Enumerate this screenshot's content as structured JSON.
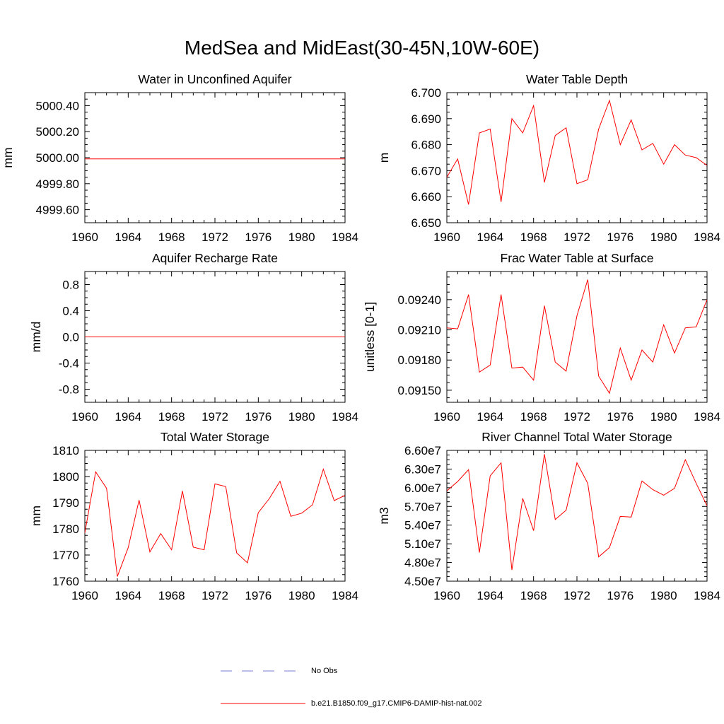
{
  "figure": {
    "title": "MedSea and MidEast(30-45N,10W-60E)"
  },
  "legend": {
    "entries": [
      {
        "label": "No Obs",
        "color": "#7b7bd6",
        "style": "dashed"
      },
      {
        "label": "b.e21.B1850.f09_g17.CMIP6-DAMIP-hist-nat.002",
        "color": "#ff0000",
        "style": "solid"
      }
    ]
  },
  "chart_data": [
    {
      "type": "line",
      "title": "Water in Unconfined Aquifer",
      "ylabel": "mm",
      "xlim": [
        1960,
        1984
      ],
      "ylim": [
        4999.5,
        5000.5
      ],
      "xticks": [
        1960,
        1964,
        1968,
        1972,
        1976,
        1980,
        1984
      ],
      "yticks": [
        4999.6,
        4999.8,
        5000.0,
        5000.2,
        5000.4
      ],
      "ytick_labels": [
        "4999.60",
        "4999.80",
        "5000.00",
        "5000.20",
        "5000.40"
      ],
      "x": [
        1960,
        1984
      ],
      "series": [
        {
          "name": "b.e21.B1850.f09_g17.CMIP6-DAMIP-hist-nat.002",
          "color": "#ff0000",
          "values": [
            4999.99,
            4999.99
          ]
        }
      ]
    },
    {
      "type": "line",
      "title": "Water Table Depth",
      "ylabel": "m",
      "xlim": [
        1960,
        1984
      ],
      "ylim": [
        6.65,
        6.7
      ],
      "xticks": [
        1960,
        1964,
        1968,
        1972,
        1976,
        1980,
        1984
      ],
      "yticks": [
        6.65,
        6.66,
        6.67,
        6.68,
        6.69,
        6.7
      ],
      "ytick_labels": [
        "6.650",
        "6.660",
        "6.670",
        "6.680",
        "6.690",
        "6.700"
      ],
      "x": [
        1960,
        1961,
        1962,
        1963,
        1964,
        1965,
        1966,
        1967,
        1968,
        1969,
        1970,
        1971,
        1972,
        1973,
        1974,
        1975,
        1976,
        1977,
        1978,
        1979,
        1980,
        1981,
        1982,
        1983,
        1984
      ],
      "series": [
        {
          "name": "b.e21.B1850.f09_g17.CMIP6-DAMIP-hist-nat.002",
          "color": "#ff0000",
          "values": [
            6.6675,
            6.6745,
            6.657,
            6.6845,
            6.686,
            6.658,
            6.69,
            6.6845,
            6.695,
            6.6655,
            6.6835,
            6.6865,
            6.665,
            6.6665,
            6.686,
            6.697,
            6.68,
            6.6895,
            6.678,
            6.6805,
            6.6725,
            6.68,
            6.676,
            6.675,
            6.672
          ]
        }
      ]
    },
    {
      "type": "line",
      "title": "Aquifer Recharge Rate",
      "ylabel": "mm/d",
      "xlim": [
        1960,
        1984
      ],
      "ylim": [
        -1.0,
        1.0
      ],
      "xticks": [
        1960,
        1964,
        1968,
        1972,
        1976,
        1980,
        1984
      ],
      "yticks": [
        -0.8,
        -0.4,
        0.0,
        0.4,
        0.8
      ],
      "ytick_labels": [
        "-0.8",
        "-0.4",
        "0.0",
        "0.4",
        "0.8"
      ],
      "x": [
        1960,
        1984
      ],
      "series": [
        {
          "name": "b.e21.B1850.f09_g17.CMIP6-DAMIP-hist-nat.002",
          "color": "#ff0000",
          "values": [
            0.0,
            0.0
          ]
        }
      ]
    },
    {
      "type": "line",
      "title": "Frac Water Table at Surface",
      "ylabel": "unitless [0-1]",
      "xlim": [
        1960,
        1984
      ],
      "ylim": [
        0.09138,
        0.09268
      ],
      "xticks": [
        1960,
        1964,
        1968,
        1972,
        1976,
        1980,
        1984
      ],
      "yticks": [
        0.0915,
        0.0918,
        0.0921,
        0.0924
      ],
      "ytick_labels": [
        "0.09150",
        "0.09180",
        "0.09210",
        "0.09240"
      ],
      "x": [
        1960,
        1961,
        1962,
        1963,
        1964,
        1965,
        1966,
        1967,
        1968,
        1969,
        1970,
        1971,
        1972,
        1973,
        1974,
        1975,
        1976,
        1977,
        1978,
        1979,
        1980,
        1981,
        1982,
        1983,
        1984
      ],
      "series": [
        {
          "name": "b.e21.B1850.f09_g17.CMIP6-DAMIP-hist-nat.002",
          "color": "#ff0000",
          "values": [
            0.09212,
            0.09211,
            0.09245,
            0.09168,
            0.09175,
            0.09245,
            0.09172,
            0.09173,
            0.0916,
            0.09234,
            0.09178,
            0.09169,
            0.09224,
            0.0926,
            0.09164,
            0.09147,
            0.09192,
            0.0916,
            0.0919,
            0.09178,
            0.09215,
            0.09187,
            0.09212,
            0.09213,
            0.0924
          ]
        }
      ]
    },
    {
      "type": "line",
      "title": "Total Water Storage",
      "ylabel": "mm",
      "xlim": [
        1960,
        1984
      ],
      "ylim": [
        1760,
        1810
      ],
      "xticks": [
        1960,
        1964,
        1968,
        1972,
        1976,
        1980,
        1984
      ],
      "yticks": [
        1760,
        1770,
        1780,
        1790,
        1800,
        1810
      ],
      "ytick_labels": [
        "1760",
        "1770",
        "1780",
        "1790",
        "1800",
        "1810"
      ],
      "x": [
        1960,
        1961,
        1962,
        1963,
        1964,
        1965,
        1966,
        1967,
        1968,
        1969,
        1970,
        1971,
        1972,
        1973,
        1974,
        1975,
        1976,
        1977,
        1978,
        1979,
        1980,
        1981,
        1982,
        1983,
        1984
      ],
      "series": [
        {
          "name": "b.e21.B1850.f09_g17.CMIP6-DAMIP-hist-nat.002",
          "color": "#ff0000",
          "values": [
            1778.5,
            1801.8,
            1795.5,
            1761.8,
            1772.8,
            1791.0,
            1771.2,
            1778.2,
            1772.0,
            1794.5,
            1773.0,
            1772.0,
            1797.2,
            1796.2,
            1770.8,
            1767.0,
            1786.2,
            1791.5,
            1798.2,
            1784.8,
            1786.0,
            1789.2,
            1802.8,
            1790.8,
            1792.8
          ]
        }
      ]
    },
    {
      "type": "line",
      "title": "River Channel Total Water Storage",
      "ylabel": "m3",
      "xlim": [
        1960,
        1984
      ],
      "ylim": [
        45000000,
        66000000
      ],
      "xticks": [
        1960,
        1964,
        1968,
        1972,
        1976,
        1980,
        1984
      ],
      "yticks": [
        45000000,
        48000000,
        51000000,
        54000000,
        57000000,
        60000000,
        63000000,
        66000000
      ],
      "ytick_labels": [
        "4.50e7",
        "4.80e7",
        "5.10e7",
        "5.40e7",
        "5.70e7",
        "6.00e7",
        "6.30e7",
        "6.60e7"
      ],
      "x": [
        1960,
        1961,
        1962,
        1963,
        1964,
        1965,
        1966,
        1967,
        1968,
        1969,
        1970,
        1971,
        1972,
        1973,
        1974,
        1975,
        1976,
        1977,
        1978,
        1979,
        1980,
        1981,
        1982,
        1983,
        1984
      ],
      "series": [
        {
          "name": "b.e21.B1850.f09_g17.CMIP6-DAMIP-hist-nat.002",
          "color": "#ff0000",
          "values": [
            59500000,
            61000000,
            62900000,
            49600000,
            61900000,
            64000000,
            46800000,
            58300000,
            53100000,
            65400000,
            54900000,
            56400000,
            64000000,
            60700000,
            48900000,
            50400000,
            55400000,
            55300000,
            61100000,
            59700000,
            58800000,
            59900000,
            64500000,
            60700000,
            57100000
          ]
        }
      ]
    }
  ]
}
